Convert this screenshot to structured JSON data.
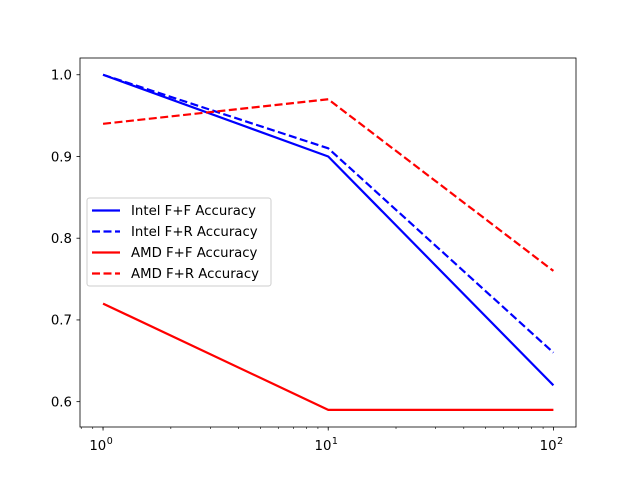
{
  "chart_data": {
    "type": "line",
    "title": "",
    "xlabel": "",
    "ylabel": "",
    "x": [
      1,
      10,
      100
    ],
    "xscale": "log",
    "xlim": [
      0.79,
      126
    ],
    "ylim": [
      0.569,
      1.0205
    ],
    "xticks": [
      {
        "value": 1,
        "base": "10",
        "exp": "0"
      },
      {
        "value": 10,
        "base": "10",
        "exp": "1"
      },
      {
        "value": 100,
        "base": "10",
        "exp": "2"
      }
    ],
    "yticks": [
      {
        "value": 0.6,
        "label": "0.6"
      },
      {
        "value": 0.7,
        "label": "0.7"
      },
      {
        "value": 0.8,
        "label": "0.8"
      },
      {
        "value": 0.9,
        "label": "0.9"
      },
      {
        "value": 1.0,
        "label": "1.0"
      }
    ],
    "grid": false,
    "legend_position": "center-left",
    "series": [
      {
        "name": "Intel F+F Accuracy",
        "values": [
          1.0,
          0.9,
          0.62
        ],
        "color": "#0000ff",
        "style": "solid"
      },
      {
        "name": "Intel F+R Accuracy",
        "values": [
          1.0,
          0.91,
          0.66
        ],
        "color": "#0000ff",
        "style": "dashed"
      },
      {
        "name": "AMD F+F Accuracy",
        "values": [
          0.72,
          0.59,
          0.59
        ],
        "color": "#ff0000",
        "style": "solid"
      },
      {
        "name": "AMD F+R Accuracy",
        "values": [
          0.94,
          0.97,
          0.76
        ],
        "color": "#ff0000",
        "style": "dashed"
      }
    ]
  }
}
